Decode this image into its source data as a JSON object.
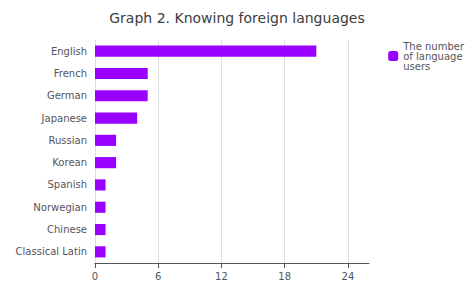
{
  "chart_data": {
    "type": "bar",
    "orientation": "horizontal",
    "title": "Graph 2. Knowing foreign languages",
    "categories": [
      "English",
      "French",
      "German",
      "Japanese",
      "Russian",
      "Korean",
      "Spanish",
      "Norwegian",
      "Chinese",
      "Classical Latin"
    ],
    "series": [
      {
        "name": "The number\nof language\nusers",
        "color": "#9900ff",
        "values": [
          21,
          5,
          5,
          4,
          2,
          2,
          1,
          1,
          1,
          1
        ]
      }
    ],
    "xlim": [
      0,
      26
    ],
    "xticks": [
      0,
      6,
      12,
      18,
      24
    ],
    "grid": true,
    "legend": "upper right"
  }
}
